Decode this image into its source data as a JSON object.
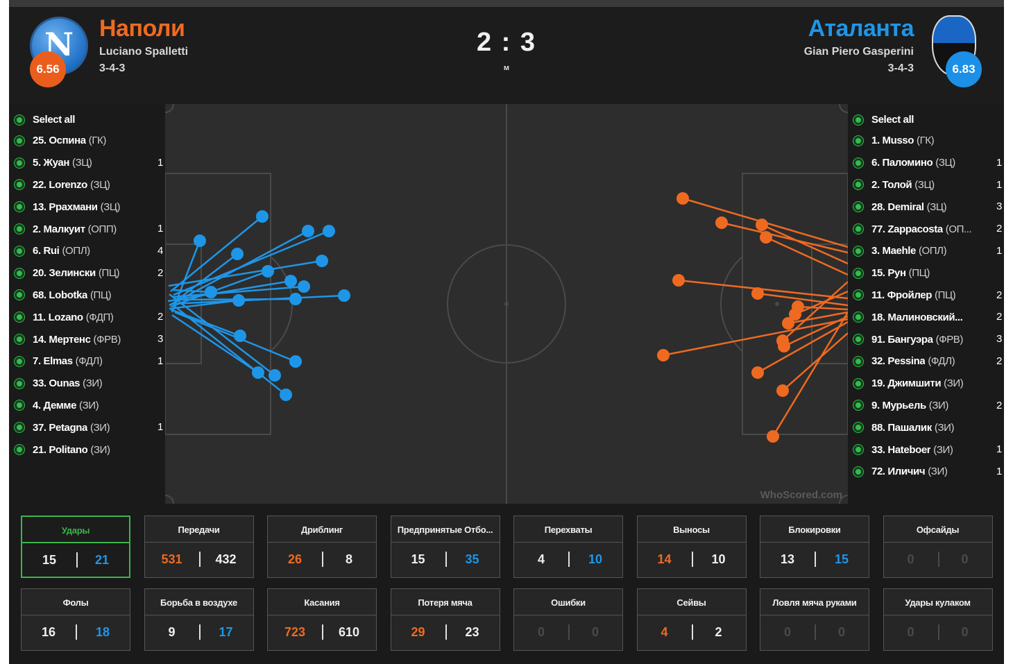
{
  "header": {
    "home": {
      "name": "Наполи",
      "coach": "Luciano Spalletti",
      "formation": "3-4-3",
      "rating": "6.56",
      "crest_letter": "N",
      "color": "#ef6a21"
    },
    "away": {
      "name": "Аталанта",
      "coach": "Gian Piero Gasperini",
      "formation": "3-4-3",
      "rating": "6.83",
      "color": "#1e96e8"
    },
    "score": "2 : 3",
    "score_sub": "м"
  },
  "home_players": [
    {
      "name": "Select all",
      "pos": "",
      "count": ""
    },
    {
      "name": "25. Оспина",
      "pos": "(ГК)",
      "count": ""
    },
    {
      "name": "5. Жуан",
      "pos": "(ЗЦ)",
      "count": "1"
    },
    {
      "name": "22. Lorenzo",
      "pos": "(ЗЦ)",
      "count": ""
    },
    {
      "name": "13. Ррахмани",
      "pos": "(ЗЦ)",
      "count": ""
    },
    {
      "name": "2. Малкуит",
      "pos": "(ОПП)",
      "count": "1"
    },
    {
      "name": "6. Rui",
      "pos": "(ОПЛ)",
      "count": "4"
    },
    {
      "name": "20. Зелински",
      "pos": "(ПЦ)",
      "count": "2"
    },
    {
      "name": "68. Lobotka",
      "pos": "(ПЦ)",
      "count": ""
    },
    {
      "name": "11. Lozano",
      "pos": "(ФДП)",
      "count": "2"
    },
    {
      "name": "14. Мертенс",
      "pos": "(ФРВ)",
      "count": "3"
    },
    {
      "name": "7. Elmas",
      "pos": "(ФДЛ)",
      "count": "1"
    },
    {
      "name": "33. Ounas",
      "pos": "(ЗИ)",
      "count": ""
    },
    {
      "name": "4. Демме",
      "pos": "(ЗИ)",
      "count": ""
    },
    {
      "name": "37. Petagna",
      "pos": "(ЗИ)",
      "count": "1"
    },
    {
      "name": "21. Politano",
      "pos": "(ЗИ)",
      "count": ""
    }
  ],
  "away_players": [
    {
      "name": "Select all",
      "pos": "",
      "count": ""
    },
    {
      "name": "1. Musso",
      "pos": "(ГК)",
      "count": ""
    },
    {
      "name": "6. Паломино",
      "pos": "(ЗЦ)",
      "count": "1"
    },
    {
      "name": "2. Толой",
      "pos": "(ЗЦ)",
      "count": "1"
    },
    {
      "name": "28. Demiral",
      "pos": "(ЗЦ)",
      "count": "3"
    },
    {
      "name": "77. Zappacosta",
      "pos": "(ОП...",
      "count": "2"
    },
    {
      "name": "3. Maehle",
      "pos": "(ОПЛ)",
      "count": "1"
    },
    {
      "name": "15. Рун",
      "pos": "(ПЦ)",
      "count": ""
    },
    {
      "name": "11. Фройлер",
      "pos": "(ПЦ)",
      "count": "2"
    },
    {
      "name": "18. Малиновский...",
      "pos": "",
      "count": "2"
    },
    {
      "name": "91. Бангуэра",
      "pos": "(ФРВ)",
      "count": "3"
    },
    {
      "name": "32. Pessina",
      "pos": "(ФДЛ)",
      "count": "2"
    },
    {
      "name": "19. Джимшити",
      "pos": "(ЗИ)",
      "count": ""
    },
    {
      "name": "9. Мурьель",
      "pos": "(ЗИ)",
      "count": "2"
    },
    {
      "name": "88. Пашалик",
      "pos": "(ЗИ)",
      "count": ""
    },
    {
      "name": "33. Hateboer",
      "pos": "(ЗИ)",
      "count": "1"
    },
    {
      "name": "72. Иличич",
      "pos": "(ЗИ)",
      "count": "1"
    }
  ],
  "pitch": {
    "watermark": "WhoScored.com",
    "home_color": "#1e96e8",
    "away_color": "#ef6a21",
    "line_color": "#4a4a4a"
  },
  "stats_row1": [
    {
      "title": "Удары",
      "home": "15",
      "away": "21",
      "hc": "",
      "ac": "blue",
      "active": true
    },
    {
      "title": "Передачи",
      "home": "531",
      "away": "432",
      "hc": "orange",
      "ac": ""
    },
    {
      "title": "Дриблинг",
      "home": "26",
      "away": "8",
      "hc": "orange",
      "ac": ""
    },
    {
      "title": "Предпринятые Отбо...",
      "home": "15",
      "away": "35",
      "hc": "",
      "ac": "blue"
    },
    {
      "title": "Перехваты",
      "home": "4",
      "away": "10",
      "hc": "",
      "ac": "blue"
    },
    {
      "title": "Выносы",
      "home": "14",
      "away": "10",
      "hc": "orange",
      "ac": ""
    },
    {
      "title": "Блокировки",
      "home": "13",
      "away": "15",
      "hc": "",
      "ac": "blue"
    },
    {
      "title": "Офсайды",
      "home": "0",
      "away": "0",
      "hc": "dim",
      "ac": "dim"
    }
  ],
  "stats_row2": [
    {
      "title": "Фолы",
      "home": "16",
      "away": "18",
      "hc": "",
      "ac": "blue"
    },
    {
      "title": "Борьба в воздухе",
      "home": "9",
      "away": "17",
      "hc": "",
      "ac": "blue"
    },
    {
      "title": "Касания",
      "home": "723",
      "away": "610",
      "hc": "orange",
      "ac": ""
    },
    {
      "title": "Потеря мяча",
      "home": "29",
      "away": "23",
      "hc": "orange",
      "ac": ""
    },
    {
      "title": "Ошибки",
      "home": "0",
      "away": "0",
      "hc": "dim",
      "ac": "dim"
    },
    {
      "title": "Сейвы",
      "home": "4",
      "away": "2",
      "hc": "orange",
      "ac": ""
    },
    {
      "title": "Ловля мяча руками",
      "home": "0",
      "away": "0",
      "hc": "dim",
      "ac": "dim"
    },
    {
      "title": "Удары кулаком",
      "home": "0",
      "away": "0",
      "hc": "dim",
      "ac": "dim"
    }
  ]
}
